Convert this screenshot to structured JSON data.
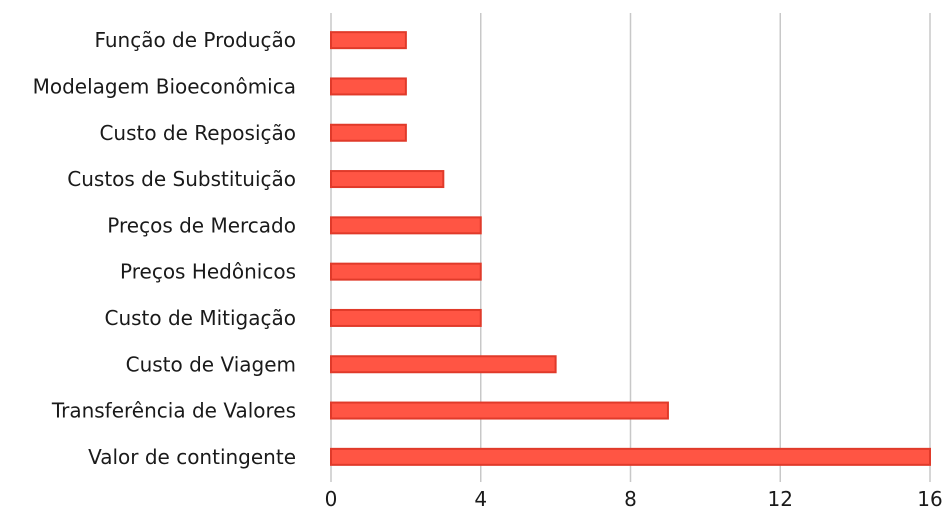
{
  "chart_data": {
    "type": "bar",
    "orientation": "horizontal",
    "categories": [
      "Função de Produção",
      "Modelagem Bioeconômica",
      "Custo de Reposição",
      "Custos de Substituição",
      "Preços de Mercado",
      "Preços Hedônicos",
      "Custo de Mitigação",
      "Custo de Viagem",
      "Transferência de Valores",
      "Valor de contingente"
    ],
    "values": [
      2,
      2,
      2,
      3,
      4,
      4,
      4,
      6,
      9,
      16
    ],
    "xlim": [
      0,
      16
    ],
    "xticks": [
      "0",
      "4",
      "8",
      "12",
      "16"
    ],
    "grid": "vertical",
    "legend": "none",
    "colors": {
      "bar_fill": "#ff5544",
      "bar_stroke": "#e03a2a"
    }
  }
}
